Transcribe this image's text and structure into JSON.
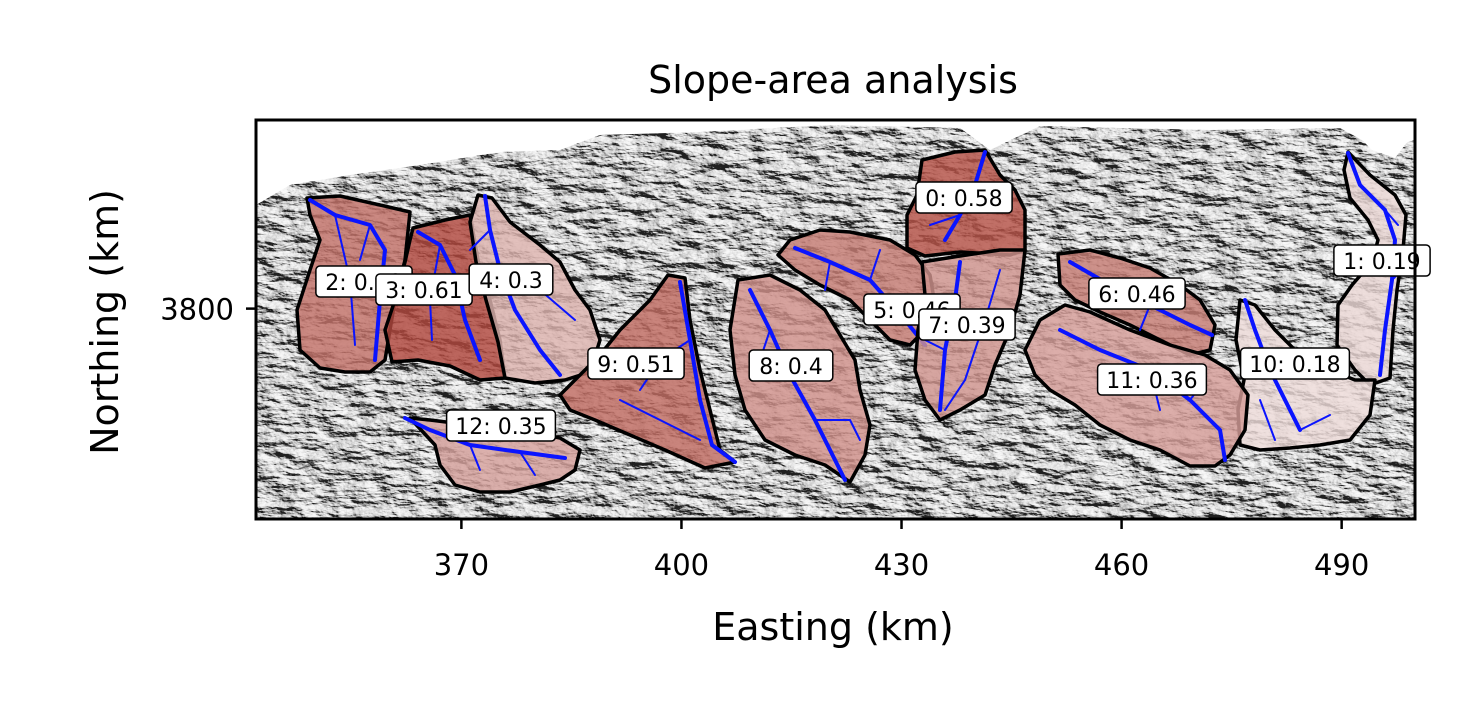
{
  "chart_data": {
    "type": "map",
    "title": "Slope-area analysis",
    "xlabel": "Easting (km)",
    "ylabel": "Northing (km)",
    "xlim": [
      342,
      500
    ],
    "ylim": [
      3771,
      3826
    ],
    "xticks": [
      370,
      400,
      430,
      460,
      490
    ],
    "xtick_labels": [
      "370",
      "400",
      "430",
      "460",
      "490"
    ],
    "yticks": [
      3800
    ],
    "ytick_labels": [
      "3800"
    ],
    "basins": [
      {
        "id": 0,
        "label": "0: 0.58",
        "value": 0.58
      },
      {
        "id": 1,
        "label": "1: 0.19",
        "value": 0.19
      },
      {
        "id": 2,
        "label": "2: 0.49",
        "value": 0.49
      },
      {
        "id": 3,
        "label": "3: 0.61",
        "value": 0.61
      },
      {
        "id": 4,
        "label": "4: 0.3",
        "value": 0.3
      },
      {
        "id": 5,
        "label": "5: 0.46",
        "value": 0.46
      },
      {
        "id": 6,
        "label": "6: 0.46",
        "value": 0.46
      },
      {
        "id": 7,
        "label": "7: 0.39",
        "value": 0.39
      },
      {
        "id": 8,
        "label": "8: 0.4",
        "value": 0.4
      },
      {
        "id": 9,
        "label": "9: 0.51",
        "value": 0.51
      },
      {
        "id": 10,
        "label": "10: 0.18",
        "value": 0.18
      },
      {
        "id": 11,
        "label": "11: 0.36",
        "value": 0.36
      },
      {
        "id": 12,
        "label": "12: 0.35",
        "value": 0.35
      }
    ],
    "colors": {
      "frame": "#000000",
      "river": "#0a14ff",
      "basin_outline": "#000000",
      "basin_low": "#f2e6e4",
      "basin_high": "#b0453a",
      "hillshade_light": "#e2e2e2",
      "hillshade_dark": "#5a5a5a"
    }
  }
}
